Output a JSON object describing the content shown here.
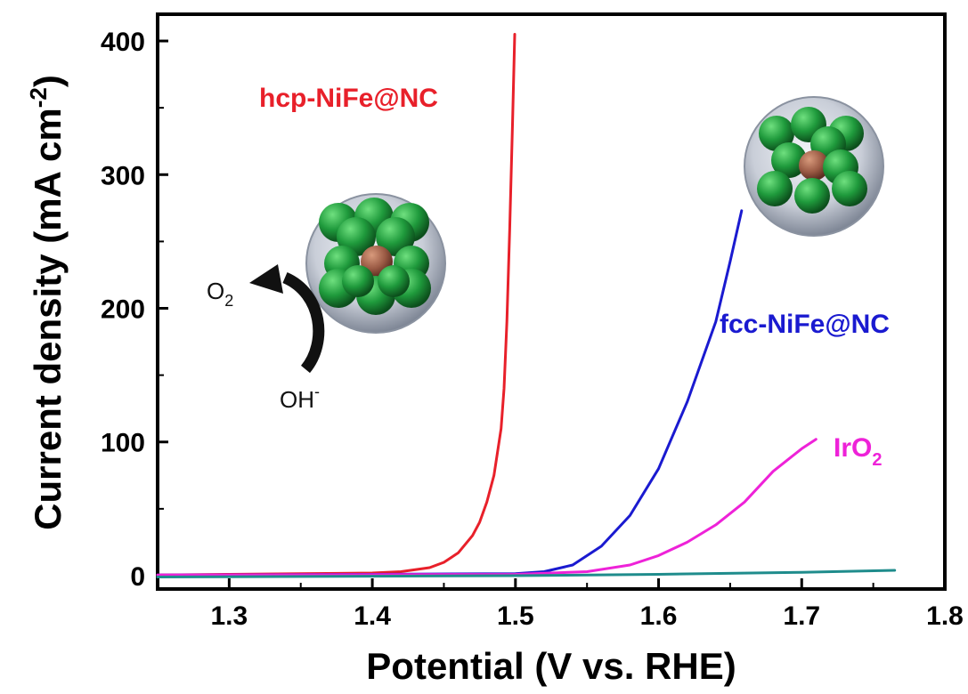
{
  "chart_data": {
    "type": "line",
    "xlabel": "Potential (V vs. RHE)",
    "ylabel": "Current density (mA cm",
    "ylabel_sup": "-2",
    "ylabel_close": ")",
    "xlim": [
      1.25,
      1.8
    ],
    "ylim": [
      -10,
      420
    ],
    "xticks": [
      "1.3",
      "1.4",
      "1.5",
      "1.6",
      "1.7",
      "1.8"
    ],
    "yticks": [
      "0",
      "100",
      "200",
      "300",
      "400"
    ],
    "grid": false,
    "series": [
      {
        "name": "hcp-NiFe@NC",
        "color": "#e8202a",
        "x": [
          1.25,
          1.3,
          1.35,
          1.4,
          1.42,
          1.44,
          1.45,
          1.46,
          1.47,
          1.475,
          1.48,
          1.485,
          1.49,
          1.492,
          1.494,
          1.496,
          1.498,
          1.4995
        ],
        "y": [
          0.5,
          1,
          1.5,
          2,
          3,
          6,
          10,
          17,
          30,
          40,
          55,
          75,
          110,
          140,
          190,
          260,
          340,
          405
        ]
      },
      {
        "name": "fcc-NiFe@NC",
        "color": "#1a1ad0",
        "x": [
          1.25,
          1.4,
          1.5,
          1.52,
          1.54,
          1.56,
          1.58,
          1.6,
          1.62,
          1.64,
          1.65,
          1.658
        ],
        "y": [
          0.5,
          1,
          1.5,
          3,
          8,
          22,
          45,
          80,
          130,
          190,
          235,
          273
        ]
      },
      {
        "name": "IrO",
        "name_sub": "2",
        "color": "#ee22d8",
        "x": [
          1.25,
          1.5,
          1.55,
          1.58,
          1.6,
          1.62,
          1.64,
          1.66,
          1.68,
          1.7,
          1.71
        ],
        "y": [
          0.5,
          1,
          3,
          8,
          15,
          25,
          38,
          55,
          78,
          95,
          102
        ]
      },
      {
        "name": "",
        "color": "#1f8c8c",
        "x": [
          1.25,
          1.5,
          1.6,
          1.7,
          1.765
        ],
        "y": [
          -1,
          0,
          1,
          2.5,
          4
        ]
      }
    ],
    "annotations": {
      "o2_label": "O",
      "o2_sub": "2",
      "oh_label": "OH",
      "oh_sup": "-"
    }
  }
}
